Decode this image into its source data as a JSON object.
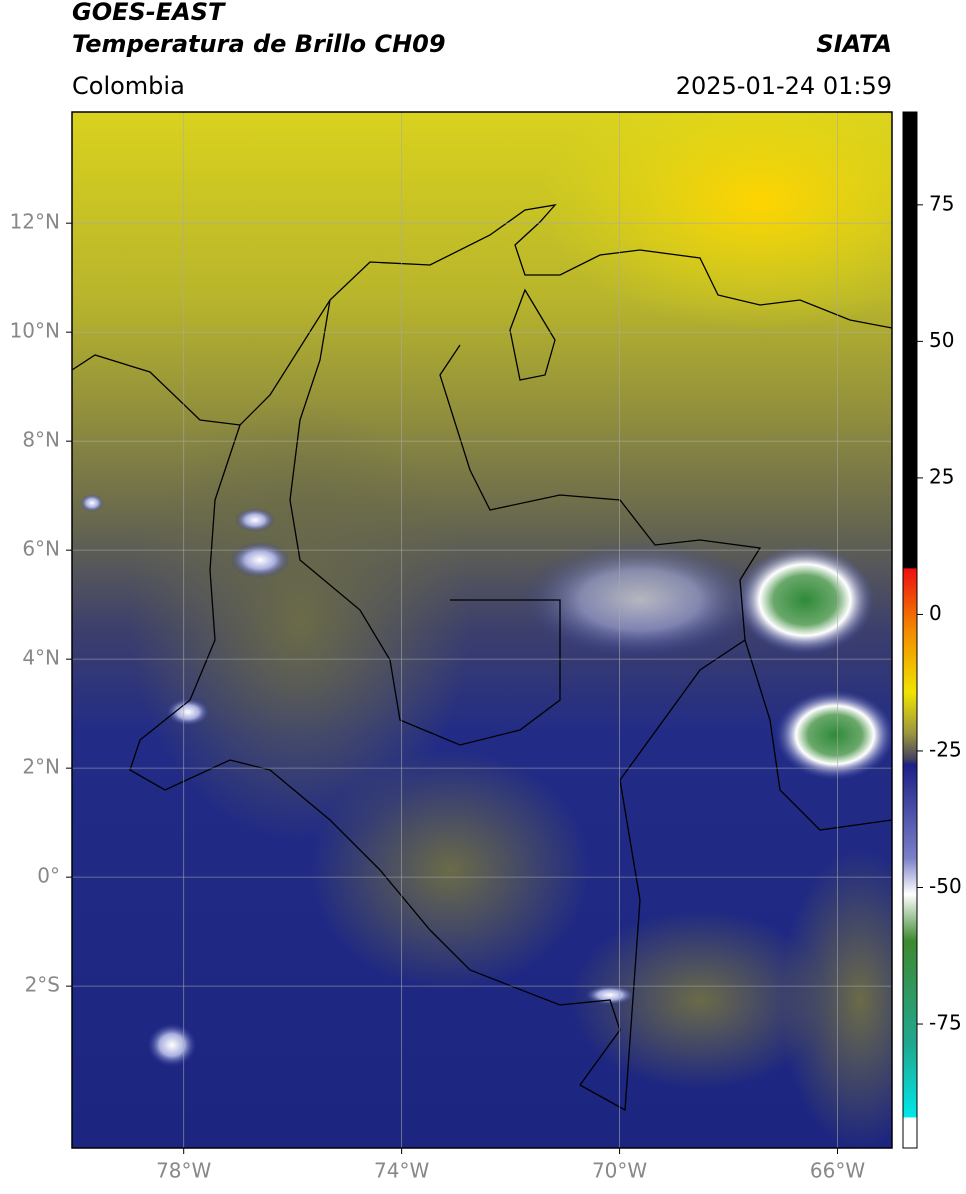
{
  "header": {
    "title": "GOES-EAST",
    "subtitle": "Temperatura de Brillo CH09",
    "source": "SIATA",
    "region": "Colombia",
    "datetime": "2025-01-24 01:59"
  },
  "map": {
    "xlim": [
      -80.05,
      -65.0
    ],
    "ylim": [
      -4.97,
      14.04
    ],
    "grid": true,
    "xticks": [
      {
        "value": -78,
        "label": "78°W"
      },
      {
        "value": -74,
        "label": "74°W"
      },
      {
        "value": -70,
        "label": "70°W"
      },
      {
        "value": -66,
        "label": "66°W"
      }
    ],
    "yticks": [
      {
        "value": -2,
        "label": "2°S"
      },
      {
        "value": 0,
        "label": "0°"
      },
      {
        "value": 2,
        "label": "2°N"
      },
      {
        "value": 4,
        "label": "4°N"
      },
      {
        "value": 6,
        "label": "6°N"
      },
      {
        "value": 8,
        "label": "8°N"
      },
      {
        "value": 10,
        "label": "10°N"
      },
      {
        "value": 12,
        "label": "12°N"
      }
    ]
  },
  "colorbar": {
    "lim": [
      -97.7,
      92.0
    ],
    "ticks": [
      -75,
      -50,
      -25,
      0,
      25,
      50,
      75
    ]
  }
}
